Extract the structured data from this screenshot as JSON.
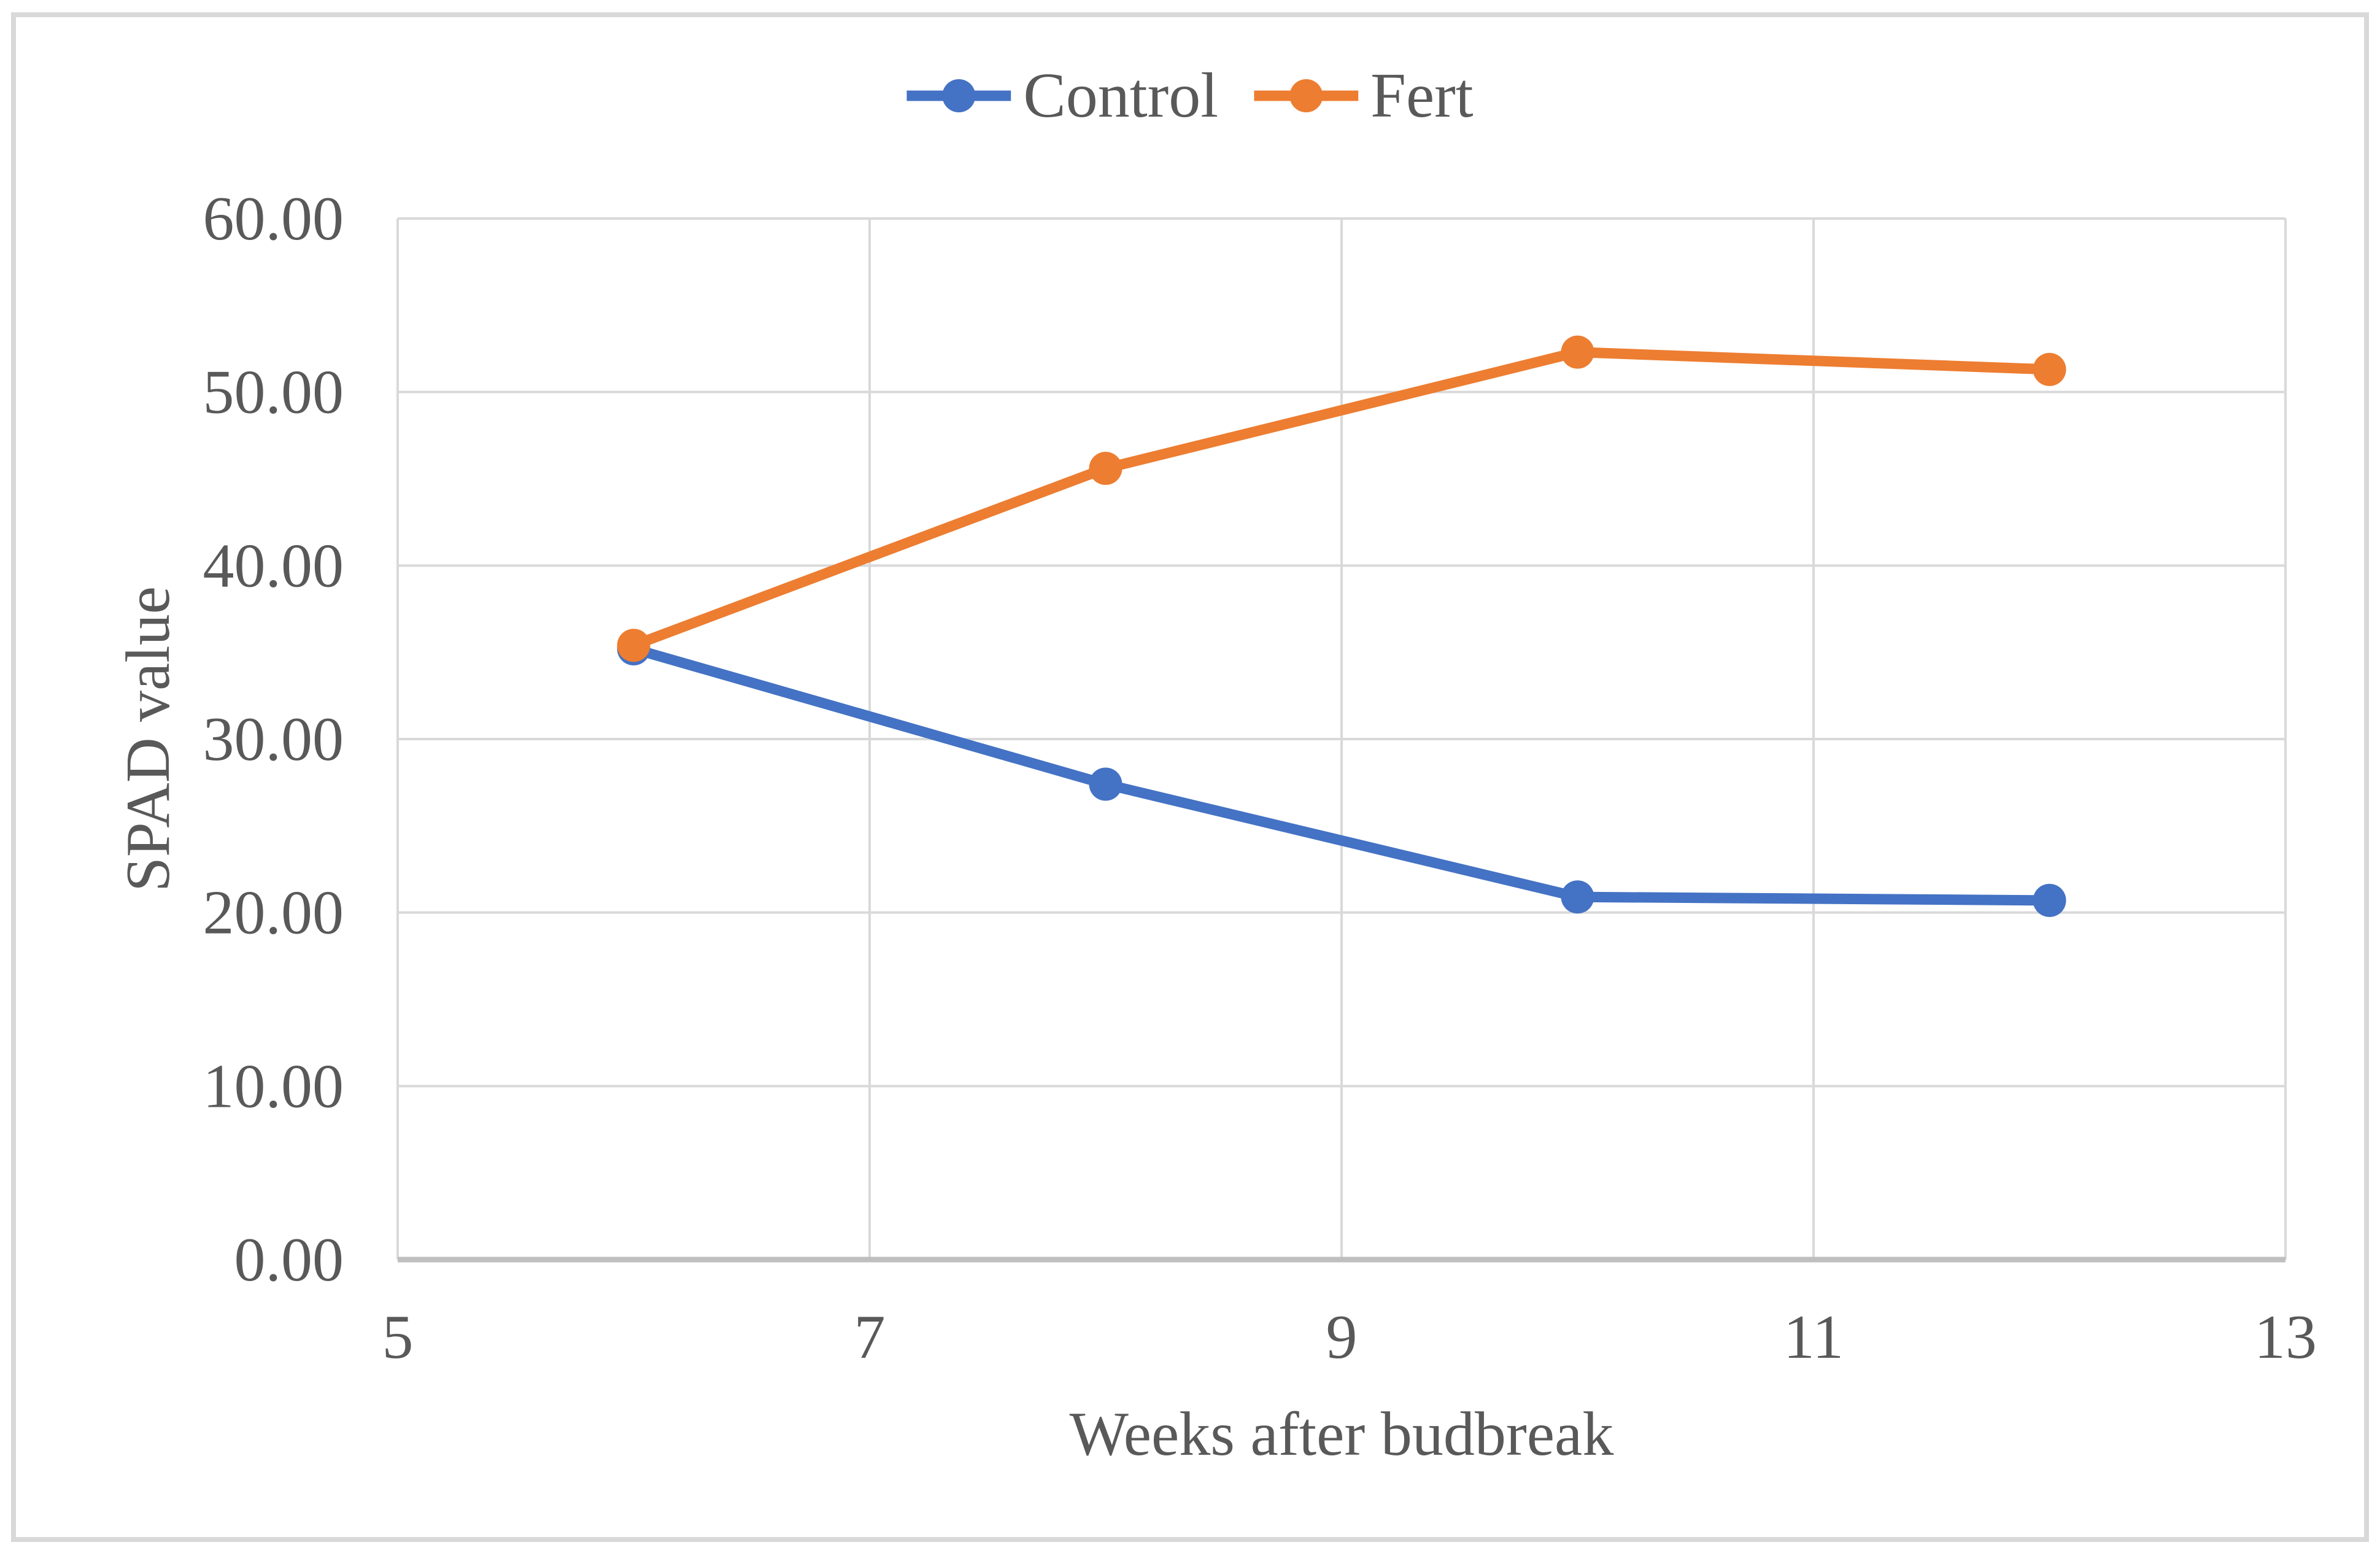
{
  "figure": {
    "background": "#FFFFFF",
    "border_color": "#D9D9D9"
  },
  "colors": {
    "text": "#595959",
    "gridline": "#D9D9D9",
    "axis_line": "#BFBFBF",
    "control_series": "#4472C4",
    "fert_series": "#ED7D31"
  },
  "legend": {
    "items": [
      {
        "label": "Control",
        "color": "#4472C4"
      },
      {
        "label": "Fert",
        "color": "#ED7D31"
      }
    ]
  },
  "chart_data": {
    "type": "line",
    "title": "",
    "x": [
      6,
      8,
      10,
      12
    ],
    "series": [
      {
        "name": "Control",
        "color": "#4472C4",
        "values": [
          35.2,
          27.4,
          20.9,
          20.7
        ]
      },
      {
        "name": "Fert",
        "color": "#ED7D31",
        "values": [
          35.4,
          45.6,
          52.3,
          51.3
        ]
      }
    ],
    "xlabel": "Weeks after budbreak",
    "ylabel": "SPAD value",
    "xlim": [
      5,
      13
    ],
    "ylim": [
      0,
      60
    ],
    "xticks": [
      5,
      7,
      9,
      11,
      13
    ],
    "yticks": [
      0,
      10,
      20,
      30,
      40,
      50,
      60
    ],
    "xtick_labels": [
      "5",
      "7",
      "9",
      "11",
      "13"
    ],
    "ytick_labels": [
      "0.00",
      "10.00",
      "20.00",
      "30.00",
      "40.00",
      "50.00",
      "60.00"
    ],
    "grid": true,
    "legend_position": "top-center",
    "marker": "circle"
  }
}
